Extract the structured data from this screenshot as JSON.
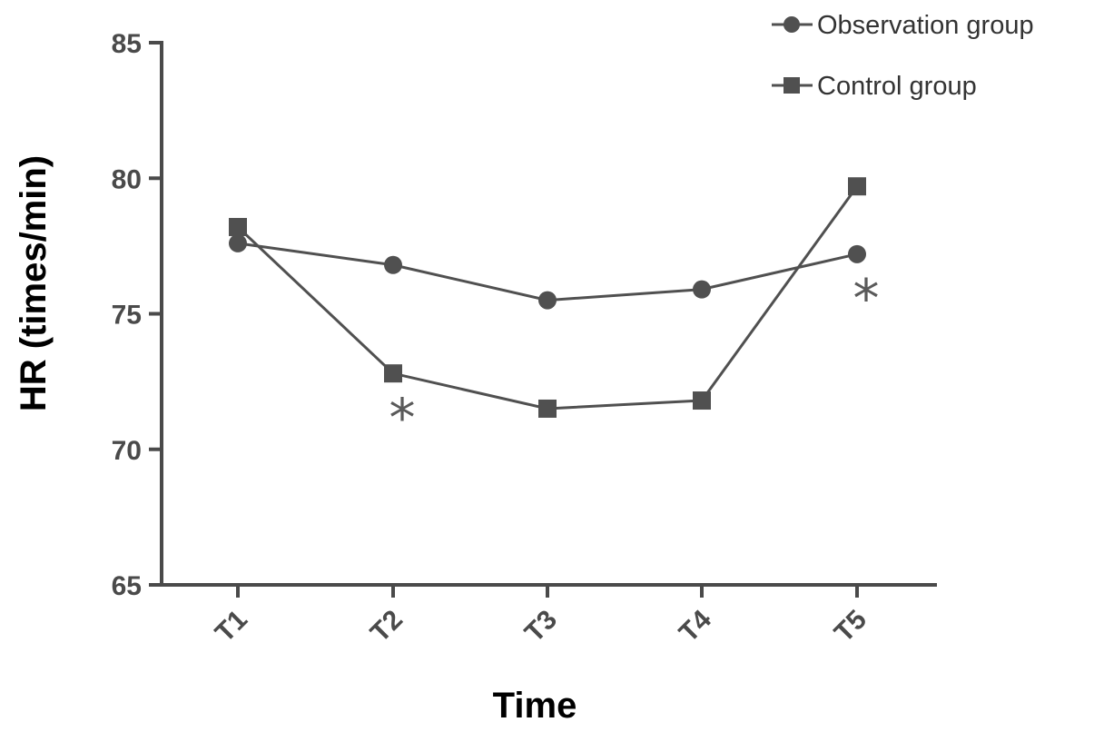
{
  "chart_data": {
    "type": "line",
    "title": "",
    "xlabel": "Time",
    "ylabel": "HR (times/min)",
    "categories": [
      "T1",
      "T2",
      "T3",
      "T4",
      "T5"
    ],
    "ylim": [
      65,
      85
    ],
    "yticks": [
      65,
      70,
      75,
      80,
      85
    ],
    "grid": false,
    "legend_position": "top-right",
    "series": [
      {
        "name": "Observation group",
        "marker": "circle",
        "color": "#505050",
        "values": [
          77.6,
          76.8,
          75.5,
          75.9,
          77.2
        ]
      },
      {
        "name": "Control group",
        "marker": "square",
        "color": "#505050",
        "values": [
          78.2,
          72.8,
          71.5,
          71.8,
          79.7
        ]
      }
    ],
    "annotations": [
      {
        "text": "*",
        "category": "T2",
        "value": 71.7
      },
      {
        "text": "*",
        "category": "T5",
        "value": 76.1
      }
    ]
  }
}
